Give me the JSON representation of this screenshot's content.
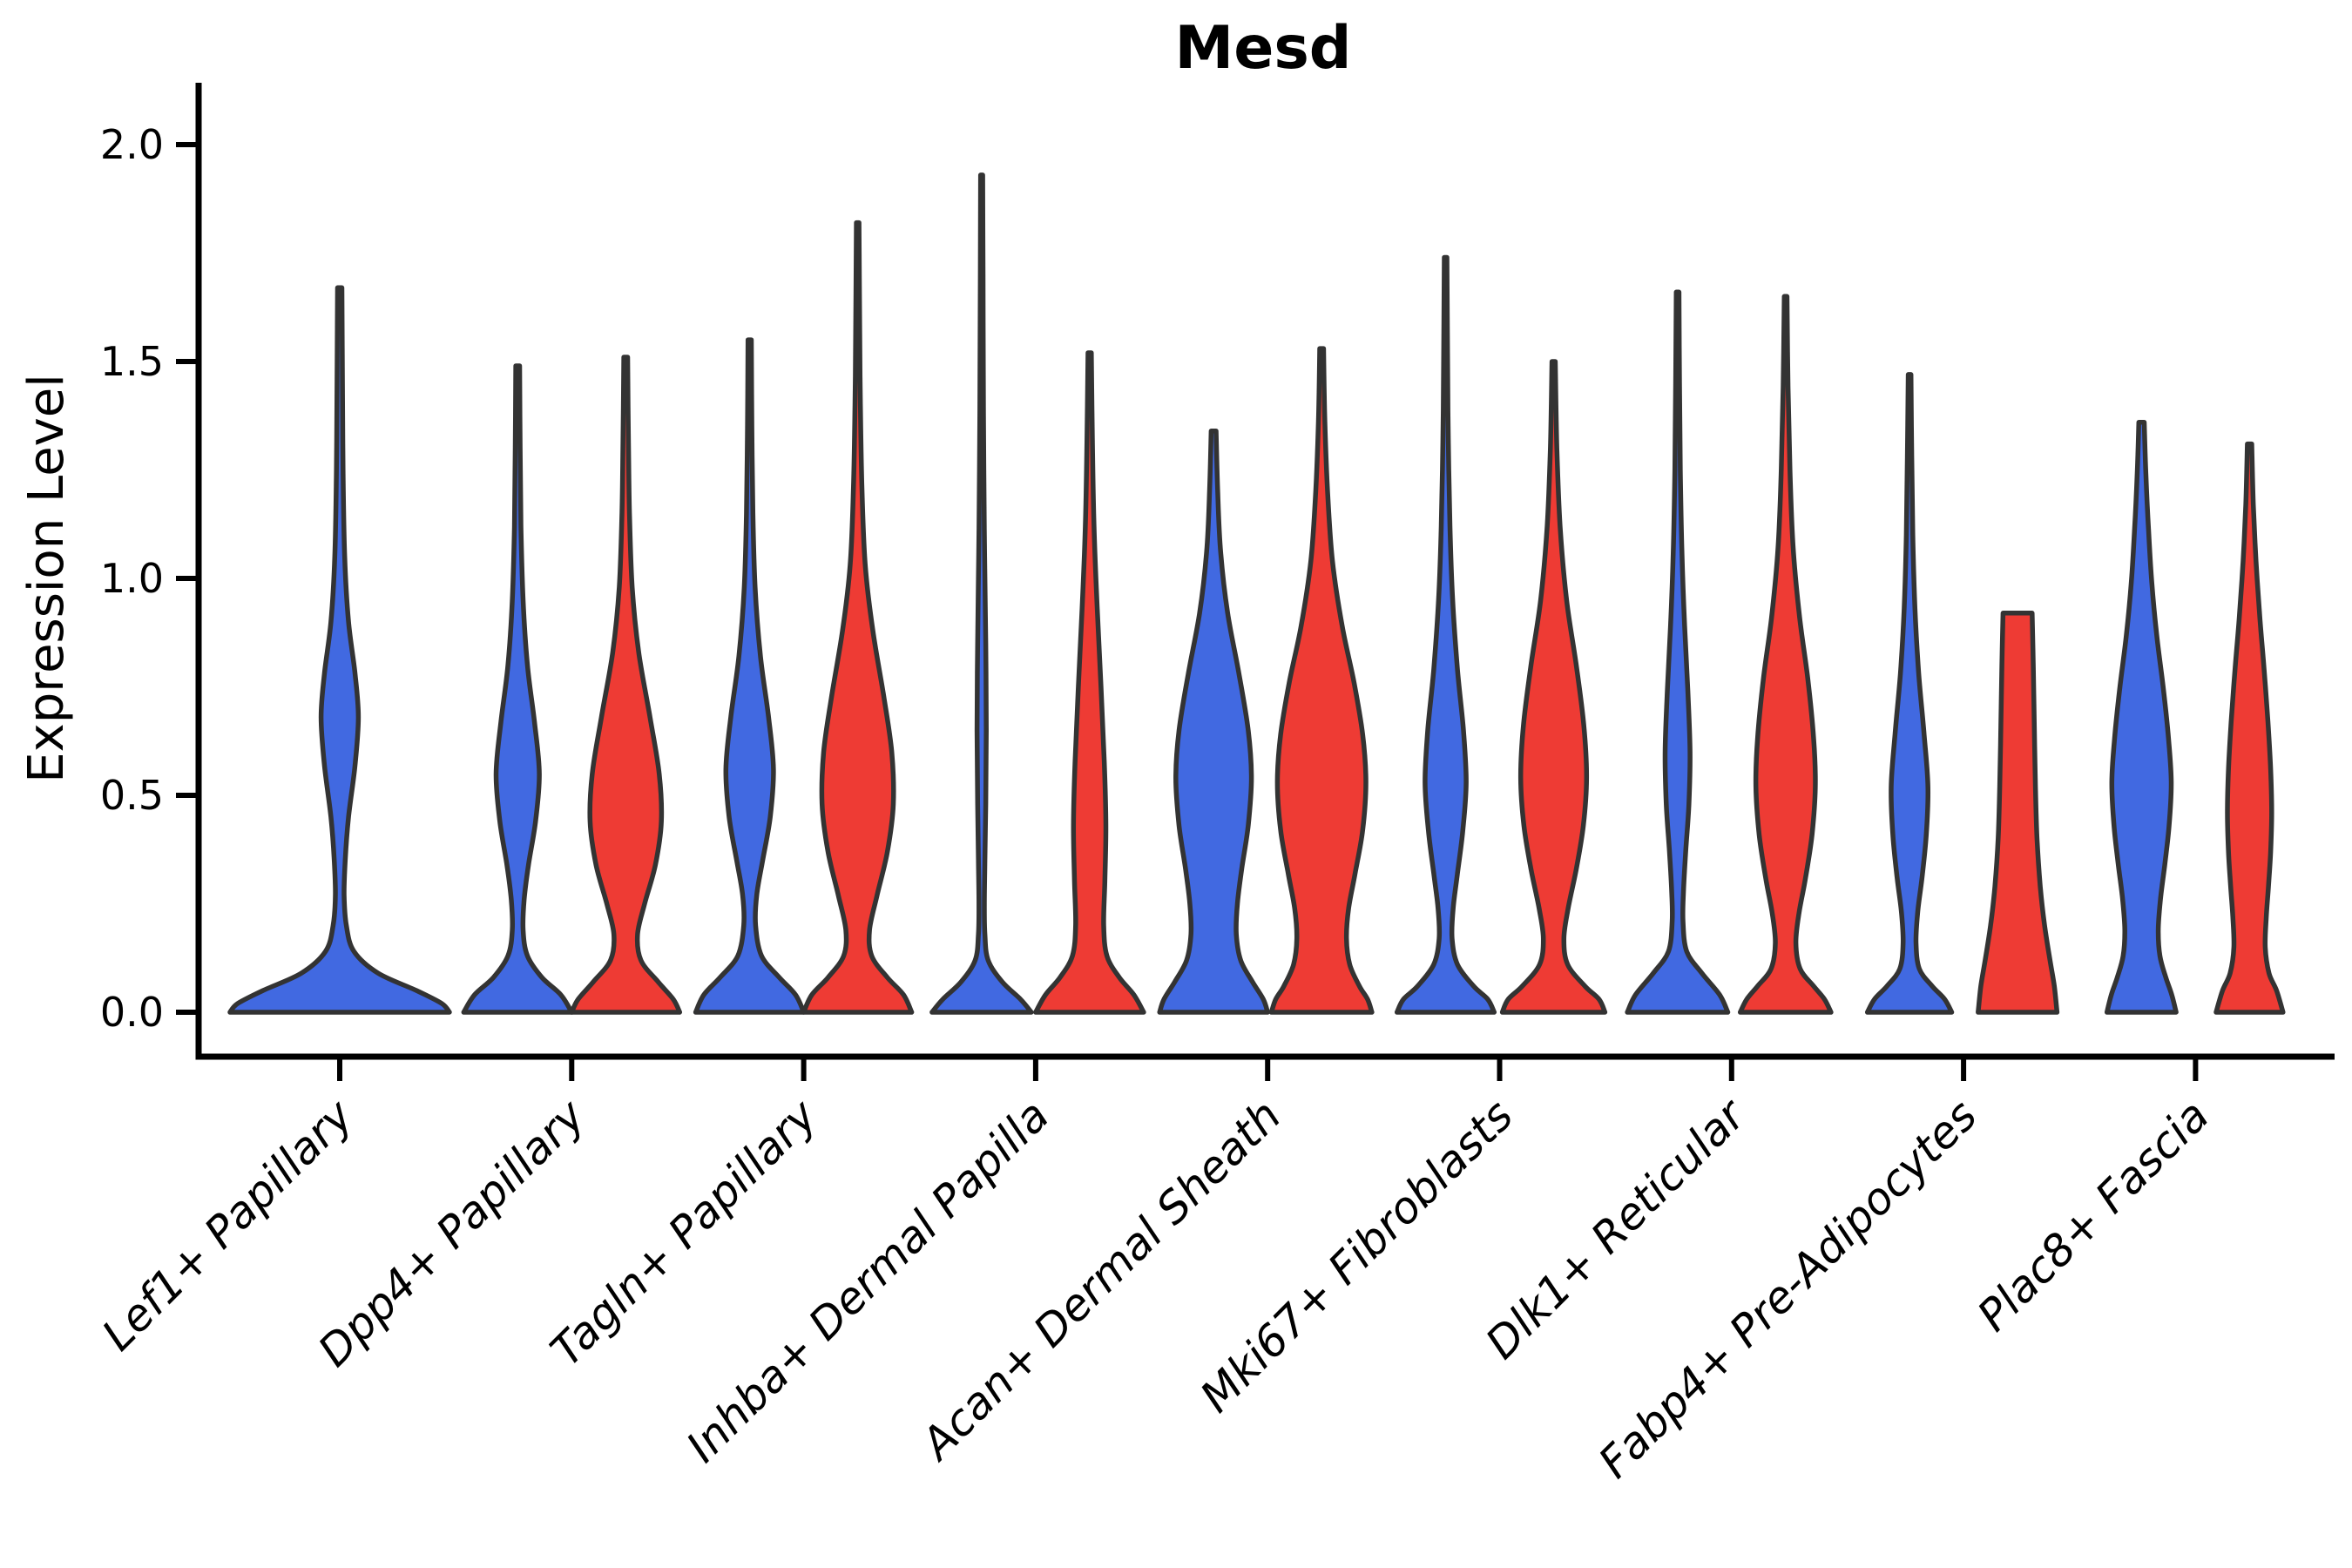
{
  "chart_data": {
    "type": "violin",
    "title": "Mesd",
    "ylabel": "Expression Level",
    "ylim": [
      0.0,
      2.0
    ],
    "yticks": [
      "0.0",
      "0.5",
      "1.0",
      "1.5",
      "2.0"
    ],
    "grid": false,
    "legend": "none",
    "categories": [
      "Lef1+ Papillary",
      "Dpp4+ Papillary",
      "Tagln+ Papillary",
      "Inhba+ Dermal Papilla",
      "Acan+ Dermal Sheath",
      "Mki67+ Fibroblasts",
      "Dlk1+ Reticular",
      "Fabp4+ Pre-Adipocytes",
      "Plac8+ Fascia"
    ],
    "series_colors": {
      "blue": "#4169E1",
      "red": "#EE3B34"
    },
    "outline_color": "#333333",
    "violins": [
      {
        "category": "Lef1+ Papillary",
        "series": "blue",
        "max_expression": 1.67,
        "profile": [
          [
            1.67,
            0.02
          ],
          [
            1.45,
            0.025
          ],
          [
            1.25,
            0.03
          ],
          [
            1.05,
            0.045
          ],
          [
            0.9,
            0.08
          ],
          [
            0.78,
            0.14
          ],
          [
            0.68,
            0.17
          ],
          [
            0.57,
            0.14
          ],
          [
            0.45,
            0.08
          ],
          [
            0.35,
            0.05
          ],
          [
            0.27,
            0.04
          ],
          [
            0.2,
            0.06
          ],
          [
            0.14,
            0.13
          ],
          [
            0.09,
            0.35
          ],
          [
            0.05,
            0.7
          ],
          [
            0.02,
            0.93
          ],
          [
            0.0,
            1.0
          ]
        ]
      },
      {
        "category": "Dpp4+ Papillary",
        "series": "blue",
        "max_expression": 1.49,
        "profile": [
          [
            1.49,
            0.035
          ],
          [
            1.3,
            0.045
          ],
          [
            1.12,
            0.06
          ],
          [
            0.95,
            0.1
          ],
          [
            0.8,
            0.18
          ],
          [
            0.67,
            0.31
          ],
          [
            0.55,
            0.4
          ],
          [
            0.44,
            0.33
          ],
          [
            0.34,
            0.2
          ],
          [
            0.26,
            0.12
          ],
          [
            0.19,
            0.1
          ],
          [
            0.13,
            0.18
          ],
          [
            0.08,
            0.45
          ],
          [
            0.04,
            0.8
          ],
          [
            0.0,
            1.0
          ]
        ]
      },
      {
        "category": "Dpp4+ Papillary",
        "series": "red",
        "max_expression": 1.51,
        "profile": [
          [
            1.51,
            0.035
          ],
          [
            1.32,
            0.05
          ],
          [
            1.15,
            0.07
          ],
          [
            0.98,
            0.12
          ],
          [
            0.83,
            0.24
          ],
          [
            0.68,
            0.45
          ],
          [
            0.55,
            0.62
          ],
          [
            0.44,
            0.66
          ],
          [
            0.34,
            0.55
          ],
          [
            0.25,
            0.35
          ],
          [
            0.18,
            0.22
          ],
          [
            0.12,
            0.28
          ],
          [
            0.07,
            0.6
          ],
          [
            0.03,
            0.88
          ],
          [
            0.0,
            1.0
          ]
        ]
      },
      {
        "category": "Tagln+ Papillary",
        "series": "blue",
        "max_expression": 1.55,
        "profile": [
          [
            1.55,
            0.03
          ],
          [
            1.35,
            0.04
          ],
          [
            1.15,
            0.06
          ],
          [
            0.98,
            0.1
          ],
          [
            0.82,
            0.2
          ],
          [
            0.68,
            0.35
          ],
          [
            0.56,
            0.44
          ],
          [
            0.45,
            0.38
          ],
          [
            0.35,
            0.24
          ],
          [
            0.27,
            0.13
          ],
          [
            0.2,
            0.11
          ],
          [
            0.13,
            0.22
          ],
          [
            0.08,
            0.55
          ],
          [
            0.04,
            0.85
          ],
          [
            0.0,
            1.0
          ]
        ]
      },
      {
        "category": "Tagln+ Papillary",
        "series": "red",
        "max_expression": 1.82,
        "profile": [
          [
            1.82,
            0.025
          ],
          [
            1.6,
            0.035
          ],
          [
            1.4,
            0.05
          ],
          [
            1.2,
            0.08
          ],
          [
            1.03,
            0.14
          ],
          [
            0.88,
            0.28
          ],
          [
            0.73,
            0.48
          ],
          [
            0.6,
            0.63
          ],
          [
            0.48,
            0.66
          ],
          [
            0.37,
            0.55
          ],
          [
            0.27,
            0.36
          ],
          [
            0.19,
            0.22
          ],
          [
            0.13,
            0.26
          ],
          [
            0.08,
            0.55
          ],
          [
            0.04,
            0.85
          ],
          [
            0.0,
            1.0
          ]
        ]
      },
      {
        "category": "Inhba+ Dermal Papilla",
        "series": "blue",
        "max_expression": 1.93,
        "profile": [
          [
            1.93,
            0.02
          ],
          [
            1.7,
            0.025
          ],
          [
            1.48,
            0.03
          ],
          [
            1.25,
            0.04
          ],
          [
            1.05,
            0.055
          ],
          [
            0.85,
            0.075
          ],
          [
            0.65,
            0.085
          ],
          [
            0.48,
            0.075
          ],
          [
            0.35,
            0.06
          ],
          [
            0.25,
            0.05
          ],
          [
            0.18,
            0.06
          ],
          [
            0.12,
            0.12
          ],
          [
            0.07,
            0.38
          ],
          [
            0.03,
            0.72
          ],
          [
            0.0,
            0.92
          ]
        ]
      },
      {
        "category": "Inhba+ Dermal Papilla",
        "series": "red",
        "max_expression": 1.52,
        "profile": [
          [
            1.52,
            0.03
          ],
          [
            1.32,
            0.05
          ],
          [
            1.12,
            0.08
          ],
          [
            0.93,
            0.14
          ],
          [
            0.75,
            0.21
          ],
          [
            0.58,
            0.27
          ],
          [
            0.43,
            0.3
          ],
          [
            0.3,
            0.28
          ],
          [
            0.2,
            0.26
          ],
          [
            0.13,
            0.32
          ],
          [
            0.08,
            0.55
          ],
          [
            0.04,
            0.82
          ],
          [
            0.0,
            1.0
          ]
        ]
      },
      {
        "category": "Acan+ Dermal Sheath",
        "series": "blue",
        "max_expression": 1.34,
        "profile": [
          [
            1.34,
            0.045
          ],
          [
            1.2,
            0.075
          ],
          [
            1.06,
            0.13
          ],
          [
            0.92,
            0.26
          ],
          [
            0.78,
            0.47
          ],
          [
            0.65,
            0.64
          ],
          [
            0.54,
            0.7
          ],
          [
            0.43,
            0.64
          ],
          [
            0.33,
            0.52
          ],
          [
            0.25,
            0.44
          ],
          [
            0.18,
            0.42
          ],
          [
            0.12,
            0.5
          ],
          [
            0.07,
            0.72
          ],
          [
            0.03,
            0.92
          ],
          [
            0.0,
            1.0
          ]
        ]
      },
      {
        "category": "Acan+ Dermal Sheath",
        "series": "red",
        "max_expression": 1.53,
        "profile": [
          [
            1.53,
            0.035
          ],
          [
            1.36,
            0.06
          ],
          [
            1.2,
            0.11
          ],
          [
            1.04,
            0.2
          ],
          [
            0.89,
            0.38
          ],
          [
            0.76,
            0.6
          ],
          [
            0.64,
            0.76
          ],
          [
            0.53,
            0.82
          ],
          [
            0.42,
            0.76
          ],
          [
            0.32,
            0.62
          ],
          [
            0.24,
            0.5
          ],
          [
            0.17,
            0.46
          ],
          [
            0.11,
            0.52
          ],
          [
            0.06,
            0.7
          ],
          [
            0.03,
            0.85
          ],
          [
            0.0,
            0.93
          ]
        ]
      },
      {
        "category": "Mki67+ Fibroblasts",
        "series": "blue",
        "max_expression": 1.74,
        "profile": [
          [
            1.74,
            0.025
          ],
          [
            1.52,
            0.035
          ],
          [
            1.32,
            0.05
          ],
          [
            1.12,
            0.08
          ],
          [
            0.95,
            0.13
          ],
          [
            0.79,
            0.22
          ],
          [
            0.65,
            0.33
          ],
          [
            0.53,
            0.38
          ],
          [
            0.42,
            0.32
          ],
          [
            0.32,
            0.22
          ],
          [
            0.24,
            0.14
          ],
          [
            0.17,
            0.12
          ],
          [
            0.11,
            0.22
          ],
          [
            0.06,
            0.52
          ],
          [
            0.03,
            0.78
          ],
          [
            0.0,
            0.9
          ]
        ]
      },
      {
        "category": "Mki67+ Fibroblasts",
        "series": "red",
        "max_expression": 1.5,
        "profile": [
          [
            1.5,
            0.03
          ],
          [
            1.3,
            0.06
          ],
          [
            1.12,
            0.12
          ],
          [
            0.95,
            0.24
          ],
          [
            0.8,
            0.42
          ],
          [
            0.66,
            0.56
          ],
          [
            0.54,
            0.61
          ],
          [
            0.43,
            0.55
          ],
          [
            0.33,
            0.42
          ],
          [
            0.24,
            0.27
          ],
          [
            0.17,
            0.19
          ],
          [
            0.11,
            0.26
          ],
          [
            0.06,
            0.58
          ],
          [
            0.03,
            0.84
          ],
          [
            0.0,
            0.95
          ]
        ]
      },
      {
        "category": "Dlk1+ Reticular",
        "series": "blue",
        "max_expression": 1.66,
        "profile": [
          [
            1.66,
            0.025
          ],
          [
            1.45,
            0.035
          ],
          [
            1.25,
            0.05
          ],
          [
            1.06,
            0.08
          ],
          [
            0.89,
            0.13
          ],
          [
            0.74,
            0.19
          ],
          [
            0.6,
            0.23
          ],
          [
            0.48,
            0.21
          ],
          [
            0.37,
            0.15
          ],
          [
            0.28,
            0.11
          ],
          [
            0.21,
            0.1
          ],
          [
            0.14,
            0.17
          ],
          [
            0.09,
            0.45
          ],
          [
            0.04,
            0.78
          ],
          [
            0.0,
            0.93
          ]
        ]
      },
      {
        "category": "Dlk1+ Reticular",
        "series": "red",
        "max_expression": 1.65,
        "profile": [
          [
            1.65,
            0.025
          ],
          [
            1.44,
            0.045
          ],
          [
            1.25,
            0.08
          ],
          [
            1.07,
            0.14
          ],
          [
            0.91,
            0.26
          ],
          [
            0.77,
            0.41
          ],
          [
            0.63,
            0.52
          ],
          [
            0.52,
            0.55
          ],
          [
            0.41,
            0.49
          ],
          [
            0.31,
            0.37
          ],
          [
            0.23,
            0.25
          ],
          [
            0.16,
            0.19
          ],
          [
            0.1,
            0.27
          ],
          [
            0.06,
            0.52
          ],
          [
            0.03,
            0.72
          ],
          [
            0.0,
            0.84
          ]
        ]
      },
      {
        "category": "Fabp4+ Pre-Adipocytes",
        "series": "blue",
        "max_expression": 1.47,
        "profile": [
          [
            1.47,
            0.025
          ],
          [
            1.28,
            0.04
          ],
          [
            1.1,
            0.06
          ],
          [
            0.93,
            0.1
          ],
          [
            0.78,
            0.17
          ],
          [
            0.64,
            0.27
          ],
          [
            0.52,
            0.34
          ],
          [
            0.41,
            0.31
          ],
          [
            0.31,
            0.23
          ],
          [
            0.23,
            0.15
          ],
          [
            0.16,
            0.12
          ],
          [
            0.1,
            0.18
          ],
          [
            0.06,
            0.42
          ],
          [
            0.03,
            0.65
          ],
          [
            0.0,
            0.78
          ]
        ]
      },
      {
        "category": "Fabp4+ Pre-Adipocytes",
        "series": "red",
        "max_expression": 0.92,
        "flat_top": true,
        "profile": [
          [
            0.92,
            0.27
          ],
          [
            0.8,
            0.29
          ],
          [
            0.66,
            0.31
          ],
          [
            0.52,
            0.33
          ],
          [
            0.4,
            0.36
          ],
          [
            0.29,
            0.42
          ],
          [
            0.2,
            0.5
          ],
          [
            0.12,
            0.6
          ],
          [
            0.06,
            0.68
          ],
          [
            0.0,
            0.73
          ]
        ]
      },
      {
        "category": "Plac8+ Fascia",
        "series": "blue",
        "max_expression": 1.36,
        "profile": [
          [
            1.36,
            0.05
          ],
          [
            1.24,
            0.08
          ],
          [
            1.11,
            0.13
          ],
          [
            0.99,
            0.19
          ],
          [
            0.87,
            0.28
          ],
          [
            0.75,
            0.4
          ],
          [
            0.63,
            0.5
          ],
          [
            0.53,
            0.55
          ],
          [
            0.43,
            0.51
          ],
          [
            0.34,
            0.43
          ],
          [
            0.26,
            0.35
          ],
          [
            0.19,
            0.31
          ],
          [
            0.13,
            0.34
          ],
          [
            0.08,
            0.45
          ],
          [
            0.04,
            0.56
          ],
          [
            0.0,
            0.64
          ]
        ]
      },
      {
        "category": "Plac8+ Fascia",
        "series": "red",
        "max_expression": 1.31,
        "profile": [
          [
            1.31,
            0.04
          ],
          [
            1.17,
            0.07
          ],
          [
            1.04,
            0.12
          ],
          [
            0.91,
            0.19
          ],
          [
            0.79,
            0.27
          ],
          [
            0.67,
            0.34
          ],
          [
            0.56,
            0.39
          ],
          [
            0.46,
            0.41
          ],
          [
            0.37,
            0.39
          ],
          [
            0.29,
            0.35
          ],
          [
            0.22,
            0.31
          ],
          [
            0.15,
            0.29
          ],
          [
            0.09,
            0.36
          ],
          [
            0.05,
            0.5
          ],
          [
            0.0,
            0.62
          ]
        ]
      }
    ]
  }
}
